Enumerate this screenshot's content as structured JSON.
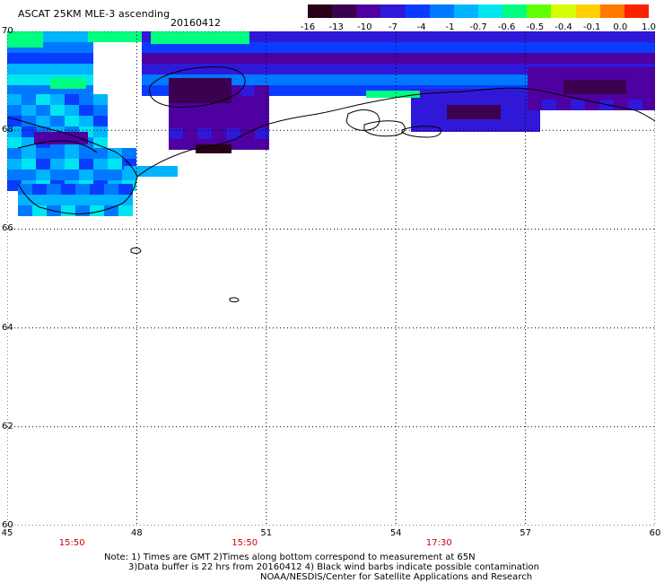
{
  "header": {
    "title": "ASCAT 25KM MLE-3 ascending",
    "date": "20160412"
  },
  "colorbar": {
    "labels": [
      "-16",
      "-13",
      "-10",
      "-7",
      "-4",
      "-1",
      "-0.7",
      "-0.6",
      "-0.5",
      "-0.4",
      "-0.1",
      "0.0",
      "1.0"
    ],
    "colors": [
      "#2a0018",
      "#3c0050",
      "#4f00a0",
      "#3018d8",
      "#0a3cff",
      "#0078ff",
      "#00b4ff",
      "#00e6f0",
      "#00ff80",
      "#60ff00",
      "#d4ff00",
      "#ffd000",
      "#ff7800",
      "#ff2000"
    ]
  },
  "map": {
    "lat_labels": [
      "70",
      "68",
      "66",
      "64",
      "62",
      "60"
    ],
    "lon_labels": [
      "45",
      "48",
      "51",
      "54",
      "57",
      "60"
    ],
    "lat_range": [
      60,
      70
    ],
    "lon_range": [
      45,
      60
    ],
    "grid": "dotted",
    "time_labels": [
      "15:50",
      "15:50",
      "17:30"
    ]
  },
  "notes": {
    "line1": "Note: 1) Times are GMT 2)Times along bottom correspond to measurement at 65N",
    "line2": "3)Data buffer is 22 hrs from 20160412 4) Black wind barbs indicate possible contamination",
    "line3": "NOAA/NESDIS/Center for Satellite Applications and Research"
  }
}
